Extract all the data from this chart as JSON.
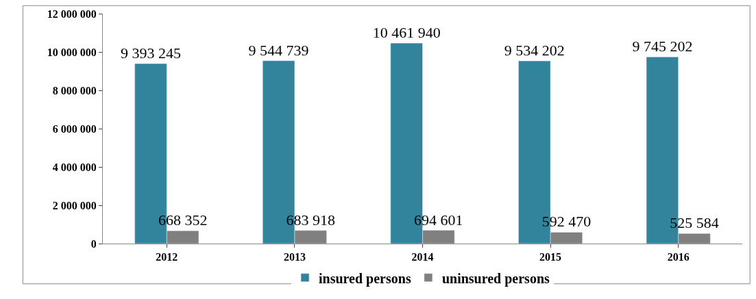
{
  "chart_data": {
    "type": "bar",
    "categories": [
      "2012",
      "2013",
      "2014",
      "2015",
      "2016"
    ],
    "series": [
      {
        "name": "insured persons",
        "color": "#31849b",
        "values": [
          9393245,
          9544739,
          10461940,
          9534202,
          9745202
        ],
        "value_labels": [
          "9 393 245",
          "9 544 739",
          "10 461 940",
          "9 534 202",
          "9 745 202"
        ]
      },
      {
        "name": "uninsured persons",
        "color": "#808080",
        "values": [
          668352,
          683918,
          694601,
          592470,
          525584
        ],
        "value_labels": [
          "668 352",
          "683 918",
          "694 601",
          "592 470",
          "525 584"
        ]
      }
    ],
    "ylim": [
      0,
      12000000
    ],
    "yticks": [
      {
        "value": 0,
        "label": "0"
      },
      {
        "value": 2000000,
        "label": "2 000 000"
      },
      {
        "value": 4000000,
        "label": "4 000 000"
      },
      {
        "value": 6000000,
        "label": "6 000 000"
      },
      {
        "value": 8000000,
        "label": "8 000 000"
      },
      {
        "value": 10000000,
        "label": "10 000 000"
      },
      {
        "value": 12000000,
        "label": "12 000 000"
      }
    ],
    "legend": "bottom"
  }
}
